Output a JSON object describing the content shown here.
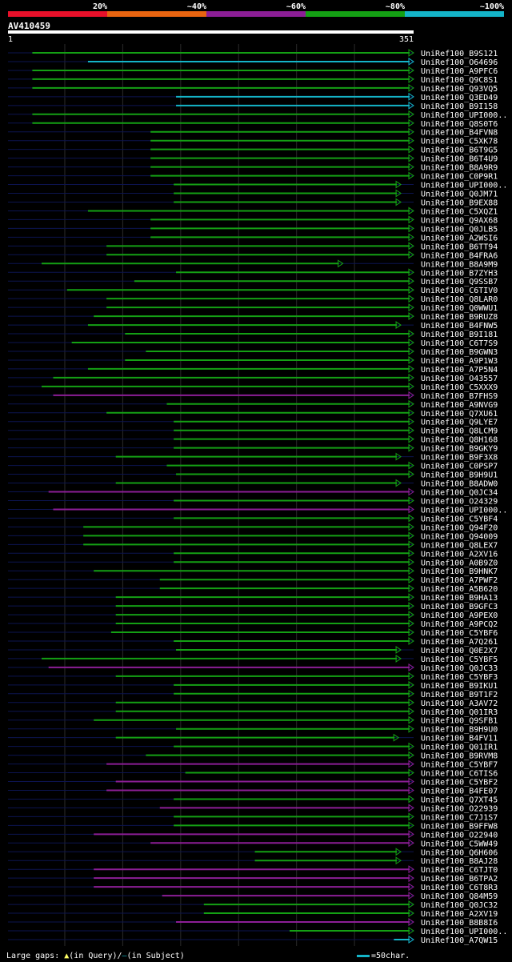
{
  "chart_data": {
    "type": "alignment-overview",
    "query_name": "AV410459",
    "query_start": "1",
    "query_end": "351",
    "query_length": 351,
    "legend": {
      "labels": [
        "20%",
        "~40%",
        "~60%",
        "~80%",
        "~100%"
      ],
      "colors": [
        "#e8102a",
        "#e86410",
        "#8c1e96",
        "#14a014",
        "#14b4c8"
      ]
    },
    "footer": {
      "gaps_text": "Large gaps: ",
      "query_gap_text": "(in Query)/",
      "subject_gap_text": "(in Subject)",
      "scale_text": "=50char."
    },
    "hits": [
      {
        "label": "UniRef100_B9S121",
        "start": 22,
        "end": 351,
        "color": "green"
      },
      {
        "label": "UniRef100_O64696",
        "start": 70,
        "end": 351,
        "color": "cyan"
      },
      {
        "label": "UniRef100_A9PFC6",
        "start": 22,
        "end": 351,
        "color": "green"
      },
      {
        "label": "UniRef100_Q9C8S1",
        "start": 22,
        "end": 351,
        "color": "green"
      },
      {
        "label": "UniRef100_Q93VQ5",
        "start": 22,
        "end": 351,
        "color": "green"
      },
      {
        "label": "UniRef100_Q3ED49",
        "start": 146,
        "end": 351,
        "color": "cyan"
      },
      {
        "label": "UniRef100_B9I158",
        "start": 146,
        "end": 351,
        "color": "cyan"
      },
      {
        "label": "UniRef100_UPI000..",
        "start": 22,
        "end": 351,
        "color": "green"
      },
      {
        "label": "UniRef100_Q8S0T6",
        "start": 22,
        "end": 351,
        "color": "green"
      },
      {
        "label": "UniRef100_B4FVN8",
        "start": 124,
        "end": 351,
        "color": "green"
      },
      {
        "label": "UniRef100_C5XK78",
        "start": 124,
        "end": 351,
        "color": "green"
      },
      {
        "label": "UniRef100_B6T9G5",
        "start": 124,
        "end": 351,
        "color": "green"
      },
      {
        "label": "UniRef100_B6T4U9",
        "start": 124,
        "end": 351,
        "color": "green"
      },
      {
        "label": "UniRef100_B8A9R9",
        "start": 124,
        "end": 351,
        "color": "green"
      },
      {
        "label": "UniRef100_C0P9R1",
        "start": 124,
        "end": 351,
        "color": "green"
      },
      {
        "label": "UniRef100_UPI000..",
        "start": 144,
        "end": 340,
        "color": "green"
      },
      {
        "label": "UniRef100_Q0JM71",
        "start": 144,
        "end": 340,
        "color": "green"
      },
      {
        "label": "UniRef100_B9EX88",
        "start": 144,
        "end": 340,
        "color": "green"
      },
      {
        "label": "UniRef100_C5XQZ1",
        "start": 70,
        "end": 351,
        "color": "green"
      },
      {
        "label": "UniRef100_Q9AX68",
        "start": 124,
        "end": 351,
        "color": "green"
      },
      {
        "label": "UniRef100_Q0JLB5",
        "start": 124,
        "end": 351,
        "color": "green"
      },
      {
        "label": "UniRef100_A2WSI6",
        "start": 124,
        "end": 351,
        "color": "green"
      },
      {
        "label": "UniRef100_B6TT94",
        "start": 86,
        "end": 351,
        "color": "green"
      },
      {
        "label": "UniRef100_B4FRA6",
        "start": 86,
        "end": 351,
        "color": "green"
      },
      {
        "label": "UniRef100_B8A9M9",
        "start": 30,
        "end": 290,
        "color": "green"
      },
      {
        "label": "UniRef100_B7ZYH3",
        "start": 146,
        "end": 351,
        "color": "green"
      },
      {
        "label": "UniRef100_Q9SSB7",
        "start": 110,
        "end": 351,
        "color": "green"
      },
      {
        "label": "UniRef100_C6TIV0",
        "start": 52,
        "end": 351,
        "color": "green"
      },
      {
        "label": "UniRef100_Q8LAR0",
        "start": 86,
        "end": 351,
        "color": "green"
      },
      {
        "label": "UniRef100_Q0WWU1",
        "start": 86,
        "end": 351,
        "color": "green"
      },
      {
        "label": "UniRef100_B9RUZ8",
        "start": 75,
        "end": 351,
        "color": "green"
      },
      {
        "label": "UniRef100_B4FNW5",
        "start": 70,
        "end": 340,
        "color": "green"
      },
      {
        "label": "UniRef100_B9I181",
        "start": 102,
        "end": 351,
        "color": "green"
      },
      {
        "label": "UniRef100_C6T7S9",
        "start": 56,
        "end": 351,
        "color": "green"
      },
      {
        "label": "UniRef100_B9GWN3",
        "start": 120,
        "end": 351,
        "color": "green"
      },
      {
        "label": "UniRef100_A9P1W3",
        "start": 102,
        "end": 351,
        "color": "green"
      },
      {
        "label": "UniRef100_A7P5N4",
        "start": 70,
        "end": 351,
        "color": "green"
      },
      {
        "label": "UniRef100_O43557",
        "start": 40,
        "end": 351,
        "color": "green"
      },
      {
        "label": "UniRef100_C5XXX9",
        "start": 30,
        "end": 351,
        "color": "green"
      },
      {
        "label": "UniRef100_B7FHS9",
        "start": 40,
        "end": 351,
        "color": "purple"
      },
      {
        "label": "UniRef100_A9NVG9",
        "start": 138,
        "end": 351,
        "color": "green"
      },
      {
        "label": "UniRef100_Q7XU61",
        "start": 86,
        "end": 351,
        "color": "green"
      },
      {
        "label": "UniRef100_Q9LYE7",
        "start": 144,
        "end": 351,
        "color": "green"
      },
      {
        "label": "UniRef100_Q8LCM9",
        "start": 144,
        "end": 351,
        "color": "green"
      },
      {
        "label": "UniRef100_Q8H168",
        "start": 144,
        "end": 351,
        "color": "green"
      },
      {
        "label": "UniRef100_B9GKY9",
        "start": 144,
        "end": 351,
        "color": "green"
      },
      {
        "label": "UniRef100_B9F3X8",
        "start": 94,
        "end": 340,
        "color": "green"
      },
      {
        "label": "UniRef100_C0PSP7",
        "start": 138,
        "end": 351,
        "color": "green"
      },
      {
        "label": "UniRef100_B9H9U1",
        "start": 146,
        "end": 351,
        "color": "green"
      },
      {
        "label": "UniRef100_B8ADW0",
        "start": 94,
        "end": 340,
        "color": "green"
      },
      {
        "label": "UniRef100_Q0JC34",
        "start": 36,
        "end": 351,
        "color": "purple"
      },
      {
        "label": "UniRef100_O24329",
        "start": 144,
        "end": 351,
        "color": "green"
      },
      {
        "label": "UniRef100_UPI000..",
        "start": 40,
        "end": 351,
        "color": "purple"
      },
      {
        "label": "UniRef100_C5YBF4",
        "start": 144,
        "end": 351,
        "color": "green"
      },
      {
        "label": "UniRef100_Q94F20",
        "start": 66,
        "end": 351,
        "color": "green"
      },
      {
        "label": "UniRef100_Q94009",
        "start": 66,
        "end": 351,
        "color": "green"
      },
      {
        "label": "UniRef100_Q8LEX7",
        "start": 66,
        "end": 351,
        "color": "green"
      },
      {
        "label": "UniRef100_A2XV16",
        "start": 144,
        "end": 351,
        "color": "green"
      },
      {
        "label": "UniRef100_A0B9Z0",
        "start": 144,
        "end": 351,
        "color": "green"
      },
      {
        "label": "UniRef100_B9HNK7",
        "start": 75,
        "end": 351,
        "color": "green"
      },
      {
        "label": "UniRef100_A7PWF2",
        "start": 132,
        "end": 351,
        "color": "green"
      },
      {
        "label": "UniRef100_A5B620",
        "start": 132,
        "end": 351,
        "color": "green"
      },
      {
        "label": "UniRef100_B9HA13",
        "start": 94,
        "end": 351,
        "color": "green"
      },
      {
        "label": "UniRef100_B9GFC3",
        "start": 94,
        "end": 351,
        "color": "green"
      },
      {
        "label": "UniRef100_A9PEX0",
        "start": 94,
        "end": 351,
        "color": "green"
      },
      {
        "label": "UniRef100_A9PCQ2",
        "start": 94,
        "end": 351,
        "color": "green"
      },
      {
        "label": "UniRef100_C5YBF6",
        "start": 90,
        "end": 351,
        "color": "green"
      },
      {
        "label": "UniRef100_A7Q261",
        "start": 144,
        "end": 351,
        "color": "green"
      },
      {
        "label": "UniRef100_Q0E2X7",
        "start": 146,
        "end": 340,
        "color": "green"
      },
      {
        "label": "UniRef100_C5YBF5",
        "start": 30,
        "end": 340,
        "color": "green"
      },
      {
        "label": "UniRef100_Q0JC33",
        "start": 36,
        "end": 351,
        "color": "purple"
      },
      {
        "label": "UniRef100_C5YBF3",
        "start": 94,
        "end": 351,
        "color": "green"
      },
      {
        "label": "UniRef100_B9IKU1",
        "start": 144,
        "end": 351,
        "color": "green"
      },
      {
        "label": "UniRef100_B9T1F2",
        "start": 144,
        "end": 351,
        "color": "green"
      },
      {
        "label": "UniRef100_A3AV72",
        "start": 94,
        "end": 351,
        "color": "green"
      },
      {
        "label": "UniRef100_Q01IR3",
        "start": 94,
        "end": 351,
        "color": "green"
      },
      {
        "label": "UniRef100_Q9SFB1",
        "start": 75,
        "end": 351,
        "color": "green"
      },
      {
        "label": "UniRef100_B9H9U0",
        "start": 146,
        "end": 351,
        "color": "green"
      },
      {
        "label": "UniRef100_B4FV11",
        "start": 94,
        "end": 338,
        "color": "green"
      },
      {
        "label": "UniRef100_Q01IR1",
        "start": 144,
        "end": 351,
        "color": "green"
      },
      {
        "label": "UniRef100_B9RVM8",
        "start": 120,
        "end": 351,
        "color": "green"
      },
      {
        "label": "UniRef100_C5YBF7",
        "start": 86,
        "end": 351,
        "color": "purple"
      },
      {
        "label": "UniRef100_C6TIS6",
        "start": 154,
        "end": 351,
        "color": "green"
      },
      {
        "label": "UniRef100_C5YBF2",
        "start": 94,
        "end": 351,
        "color": "purple"
      },
      {
        "label": "UniRef100_B4FE07",
        "start": 86,
        "end": 351,
        "color": "purple"
      },
      {
        "label": "UniRef100_Q7XT45",
        "start": 144,
        "end": 351,
        "color": "green"
      },
      {
        "label": "UniRef100_O22939",
        "start": 132,
        "end": 351,
        "color": "purple"
      },
      {
        "label": "UniRef100_C7J1S7",
        "start": 144,
        "end": 351,
        "color": "green"
      },
      {
        "label": "UniRef100_B9FFW8",
        "start": 144,
        "end": 351,
        "color": "green"
      },
      {
        "label": "UniRef100_O22940",
        "start": 75,
        "end": 351,
        "color": "purple"
      },
      {
        "label": "UniRef100_C5WW49",
        "start": 124,
        "end": 351,
        "color": "purple"
      },
      {
        "label": "UniRef100_Q6H606",
        "start": 214,
        "end": 340,
        "color": "green"
      },
      {
        "label": "UniRef100_B8AJ28",
        "start": 214,
        "end": 340,
        "color": "green"
      },
      {
        "label": "UniRef100_C6TJT0",
        "start": 75,
        "end": 351,
        "color": "purple"
      },
      {
        "label": "UniRef100_B6TPA2",
        "start": 75,
        "end": 351,
        "color": "purple"
      },
      {
        "label": "UniRef100_C6T8R3",
        "start": 75,
        "end": 351,
        "color": "purple"
      },
      {
        "label": "UniRef100_Q84M59",
        "start": 134,
        "end": 351,
        "color": "purple"
      },
      {
        "label": "UniRef100_Q0JC32",
        "start": 170,
        "end": 351,
        "color": "green"
      },
      {
        "label": "UniRef100_A2XV19",
        "start": 170,
        "end": 351,
        "color": "green"
      },
      {
        "label": "UniRef100_B8B8I6",
        "start": 146,
        "end": 351,
        "color": "purple"
      },
      {
        "label": "UniRef100_UPI000..",
        "start": 244,
        "end": 351,
        "color": "green"
      },
      {
        "label": "UniRef100_A7QW15",
        "start": 334,
        "end": 351,
        "color": "cyan"
      }
    ]
  }
}
